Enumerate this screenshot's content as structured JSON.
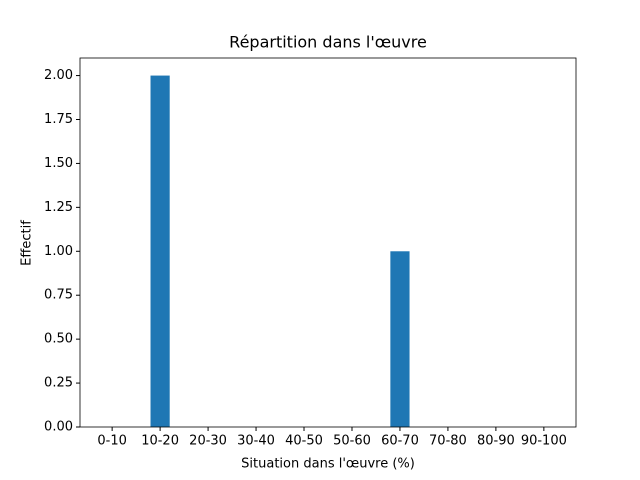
{
  "chart_data": {
    "type": "bar",
    "title": "Répartition dans l'œuvre",
    "xlabel": "Situation dans l'œuvre (%)",
    "ylabel": "Effectif",
    "categories": [
      "0-10",
      "10-20",
      "20-30",
      "30-40",
      "40-50",
      "50-60",
      "60-70",
      "70-80",
      "80-90",
      "90-100"
    ],
    "values": [
      0,
      2,
      0,
      0,
      0,
      0,
      1,
      0,
      0,
      0
    ],
    "color": "#1f77b4",
    "ylim": [
      0,
      2.1
    ],
    "yticks": [
      {
        "value": 0,
        "label": "0.00"
      },
      {
        "value": 0.25,
        "label": "0.25"
      },
      {
        "value": 0.5,
        "label": "0.50"
      },
      {
        "value": 0.75,
        "label": "0.75"
      },
      {
        "value": 1,
        "label": "1.00"
      },
      {
        "value": 1.25,
        "label": "1.25"
      },
      {
        "value": 1.5,
        "label": "1.50"
      },
      {
        "value": 1.75,
        "label": "1.75"
      },
      {
        "value": 2,
        "label": "2.00"
      }
    ],
    "grid": false
  }
}
